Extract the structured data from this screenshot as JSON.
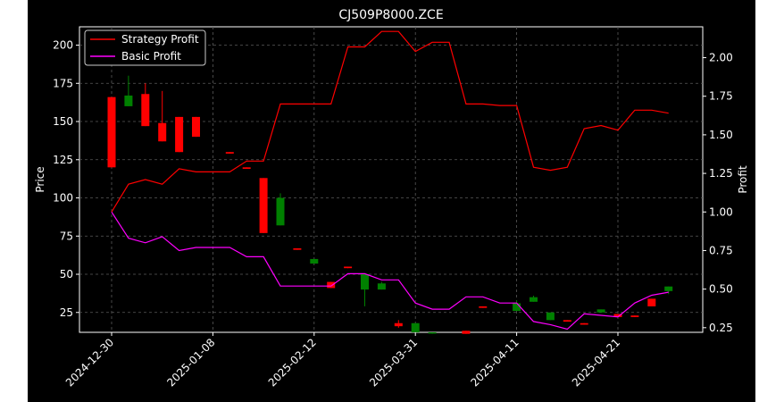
{
  "chart_data": {
    "type": "candlestick-line",
    "title": "CJ509P8000.ZCE",
    "ylabel_left": "Price",
    "ylabel_right": "Profit",
    "ylim_left": [
      12,
      212
    ],
    "ylim_right": [
      0.22,
      2.2
    ],
    "yticks_left": [
      25,
      50,
      75,
      100,
      125,
      150,
      175,
      200
    ],
    "yticks_right": [
      0.25,
      0.5,
      0.75,
      1.0,
      1.25,
      1.5,
      1.75,
      2.0
    ],
    "ytick_labels_left": [
      "25",
      "50",
      "75",
      "100",
      "125",
      "150",
      "175",
      "200"
    ],
    "ytick_labels_right": [
      "0.25",
      "0.50",
      "0.75",
      "1.00",
      "1.25",
      "1.50",
      "1.75",
      "2.00"
    ],
    "xtick_labels": [
      "2024-12-30",
      "2025-01-08",
      "2025-02-12",
      "2025-03-31",
      "2025-04-11",
      "2025-04-21"
    ],
    "xtick_index": [
      0,
      6,
      12,
      18,
      24,
      30
    ],
    "grid": true,
    "legend_position": "top-left",
    "colors": {
      "background": "#000000",
      "strategy": "#ff0000",
      "basic": "#ff00ff",
      "up": "#008000",
      "down": "#ff0000",
      "grid": "#666666",
      "text": "#ffffff"
    },
    "series": [
      {
        "name": "Strategy Profit",
        "axis": "right",
        "color": "#ff0000",
        "values": [
          1.0,
          1.18,
          1.21,
          1.18,
          1.28,
          1.26,
          1.26,
          1.26,
          1.33,
          1.33,
          1.7,
          1.7,
          1.7,
          1.7,
          2.07,
          2.07,
          2.17,
          2.17,
          2.04,
          2.1,
          2.1,
          1.7,
          1.7,
          1.69,
          1.69,
          1.29,
          1.27,
          1.29,
          1.54,
          1.56,
          1.53,
          1.66,
          1.66,
          1.64
        ]
      },
      {
        "name": "Basic Profit",
        "axis": "right",
        "color": "#ff00ff",
        "values": [
          1.0,
          0.83,
          0.8,
          0.84,
          0.75,
          0.77,
          0.77,
          0.77,
          0.71,
          0.71,
          0.52,
          0.52,
          0.52,
          0.52,
          0.6,
          0.6,
          0.56,
          0.56,
          0.41,
          0.37,
          0.37,
          0.45,
          0.45,
          0.41,
          0.41,
          0.29,
          0.27,
          0.24,
          0.34,
          0.33,
          0.32,
          0.41,
          0.46,
          0.48
        ]
      }
    ],
    "candles": [
      {
        "o": 166,
        "h": 166,
        "l": 120,
        "c": 120
      },
      {
        "o": 160,
        "h": 180,
        "l": 160,
        "c": 167
      },
      {
        "o": 168,
        "h": 175,
        "l": 147,
        "c": 147
      },
      {
        "o": 149,
        "h": 170,
        "l": 137,
        "c": 137
      },
      {
        "o": 153,
        "h": 153,
        "l": 130,
        "c": 130
      },
      {
        "o": 153,
        "h": 153,
        "l": 140,
        "c": 140
      },
      {
        "o": 130,
        "h": 130,
        "l": 129,
        "c": 129
      },
      {
        "o": 120,
        "h": 120,
        "l": 119,
        "c": 119
      },
      {
        "o": 113,
        "h": 113,
        "l": 77,
        "c": 77
      },
      {
        "o": 82,
        "h": 103,
        "l": 82,
        "c": 100
      },
      {
        "o": 67,
        "h": 67,
        "l": 66,
        "c": 66
      },
      {
        "o": 57,
        "h": 60,
        "l": 57,
        "c": 60
      },
      {
        "o": 45,
        "h": 45,
        "l": 41,
        "c": 41
      },
      {
        "o": 55,
        "h": 55,
        "l": 54,
        "c": 54
      },
      {
        "o": 40,
        "h": 50,
        "l": 29,
        "c": 50
      },
      {
        "o": 40,
        "h": 45,
        "l": 40,
        "c": 44
      },
      {
        "o": 18,
        "h": 20,
        "l": 15,
        "c": 16
      },
      {
        "o": 12,
        "h": 18,
        "l": 12,
        "c": 18
      },
      {
        "o": 12,
        "h": 12,
        "l": 11,
        "c": 12
      },
      {
        "o": 13,
        "h": 13,
        "l": 11,
        "c": 11
      },
      {
        "o": 29,
        "h": 29,
        "l": 28,
        "c": 28
      },
      {
        "o": 26,
        "h": 33,
        "l": 26,
        "c": 31
      },
      {
        "o": 32,
        "h": 36,
        "l": 32,
        "c": 35
      },
      {
        "o": 20,
        "h": 25,
        "l": 20,
        "c": 25
      },
      {
        "o": 20,
        "h": 20,
        "l": 19,
        "c": 19
      },
      {
        "o": 18,
        "h": 18,
        "l": 17,
        "c": 17
      },
      {
        "o": 25,
        "h": 27,
        "l": 25,
        "c": 27
      },
      {
        "o": 24,
        "h": 24,
        "l": 22,
        "c": 22
      },
      {
        "o": 23,
        "h": 23,
        "l": 22,
        "c": 22
      },
      {
        "o": 34,
        "h": 34,
        "l": 29,
        "c": 29
      },
      {
        "o": 39,
        "h": 42,
        "l": 37,
        "c": 42
      }
    ],
    "candle_index": [
      0,
      1,
      2,
      3,
      4,
      5,
      7,
      8,
      9,
      10,
      11,
      12,
      13,
      14,
      15,
      16,
      17,
      18,
      19,
      21,
      22,
      24,
      25,
      26,
      27,
      28,
      29,
      30,
      31,
      32,
      33
    ]
  }
}
